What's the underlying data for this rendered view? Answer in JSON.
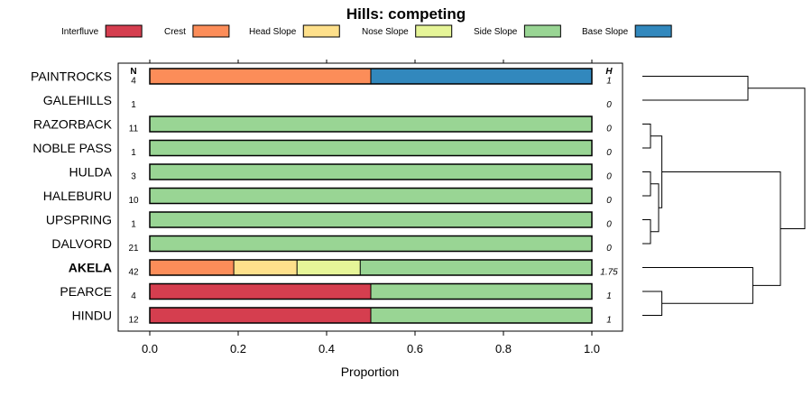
{
  "chart_data": {
    "type": "bar",
    "orientation": "horizontal",
    "stacked": true,
    "title": "Hills: competing",
    "xlabel": "Proportion",
    "xlim": [
      0,
      1
    ],
    "x_ticks": [
      "0.0",
      "0.2",
      "0.4",
      "0.6",
      "0.8",
      "1.0"
    ],
    "n_header": "N",
    "h_header": "H",
    "legend": [
      {
        "name": "Interfluve",
        "color": "#d53e4f"
      },
      {
        "name": "Crest",
        "color": "#fc8d59"
      },
      {
        "name": "Head Slope",
        "color": "#fee08b"
      },
      {
        "name": "Nose Slope",
        "color": "#e6f598"
      },
      {
        "name": "Side Slope",
        "color": "#99d594"
      },
      {
        "name": "Base Slope",
        "color": "#3288bd"
      }
    ],
    "categories": [
      "PAINTROCKS",
      "GALEHILLS",
      "RAZORBACK",
      "NOBLE PASS",
      "HULDA",
      "HALEBURU",
      "UPSPRING",
      "DALVORD",
      "AKELA",
      "PEARCE",
      "HINDU"
    ],
    "highlight": "AKELA",
    "n": [
      "4",
      "1",
      "11",
      "1",
      "3",
      "10",
      "1",
      "21",
      "42",
      "4",
      "12"
    ],
    "h": [
      "1",
      "0",
      "0",
      "0",
      "0",
      "0",
      "0",
      "0",
      "1.75",
      "1",
      "1"
    ],
    "series": [
      {
        "name": "Interfluve",
        "values": [
          0,
          0,
          0,
          0,
          0,
          0,
          0,
          0,
          0,
          0.5,
          0.5
        ]
      },
      {
        "name": "Crest",
        "values": [
          0.5,
          0,
          0,
          0,
          0,
          0,
          0,
          0,
          0.19,
          0,
          0
        ]
      },
      {
        "name": "Head Slope",
        "values": [
          0,
          0,
          0,
          0,
          0,
          0,
          0,
          0,
          0.143,
          0,
          0
        ]
      },
      {
        "name": "Nose Slope",
        "values": [
          0,
          0,
          0,
          0,
          0,
          0,
          0,
          0,
          0.143,
          0,
          0
        ]
      },
      {
        "name": "Side Slope",
        "values": [
          0,
          0,
          1,
          1,
          1,
          1,
          1,
          1,
          0.524,
          0.5,
          0.5
        ]
      },
      {
        "name": "Base Slope",
        "values": [
          0.5,
          0,
          0,
          0,
          0,
          0,
          0,
          0,
          0,
          0,
          0
        ]
      }
    ],
    "dendrogram": {
      "merges": [
        [
          -1,
          -2,
          0.65
        ],
        [
          -3,
          -4,
          0.05
        ],
        [
          -5,
          -6,
          0.05
        ],
        [
          -7,
          -8,
          0.05
        ],
        [
          3,
          4,
          0.1
        ],
        [
          2,
          5,
          0.12
        ],
        [
          -10,
          -11,
          0.12
        ],
        [
          -9,
          7,
          0.68
        ],
        [
          6,
          8,
          0.85
        ],
        [
          1,
          9,
          1.0
        ]
      ]
    }
  }
}
